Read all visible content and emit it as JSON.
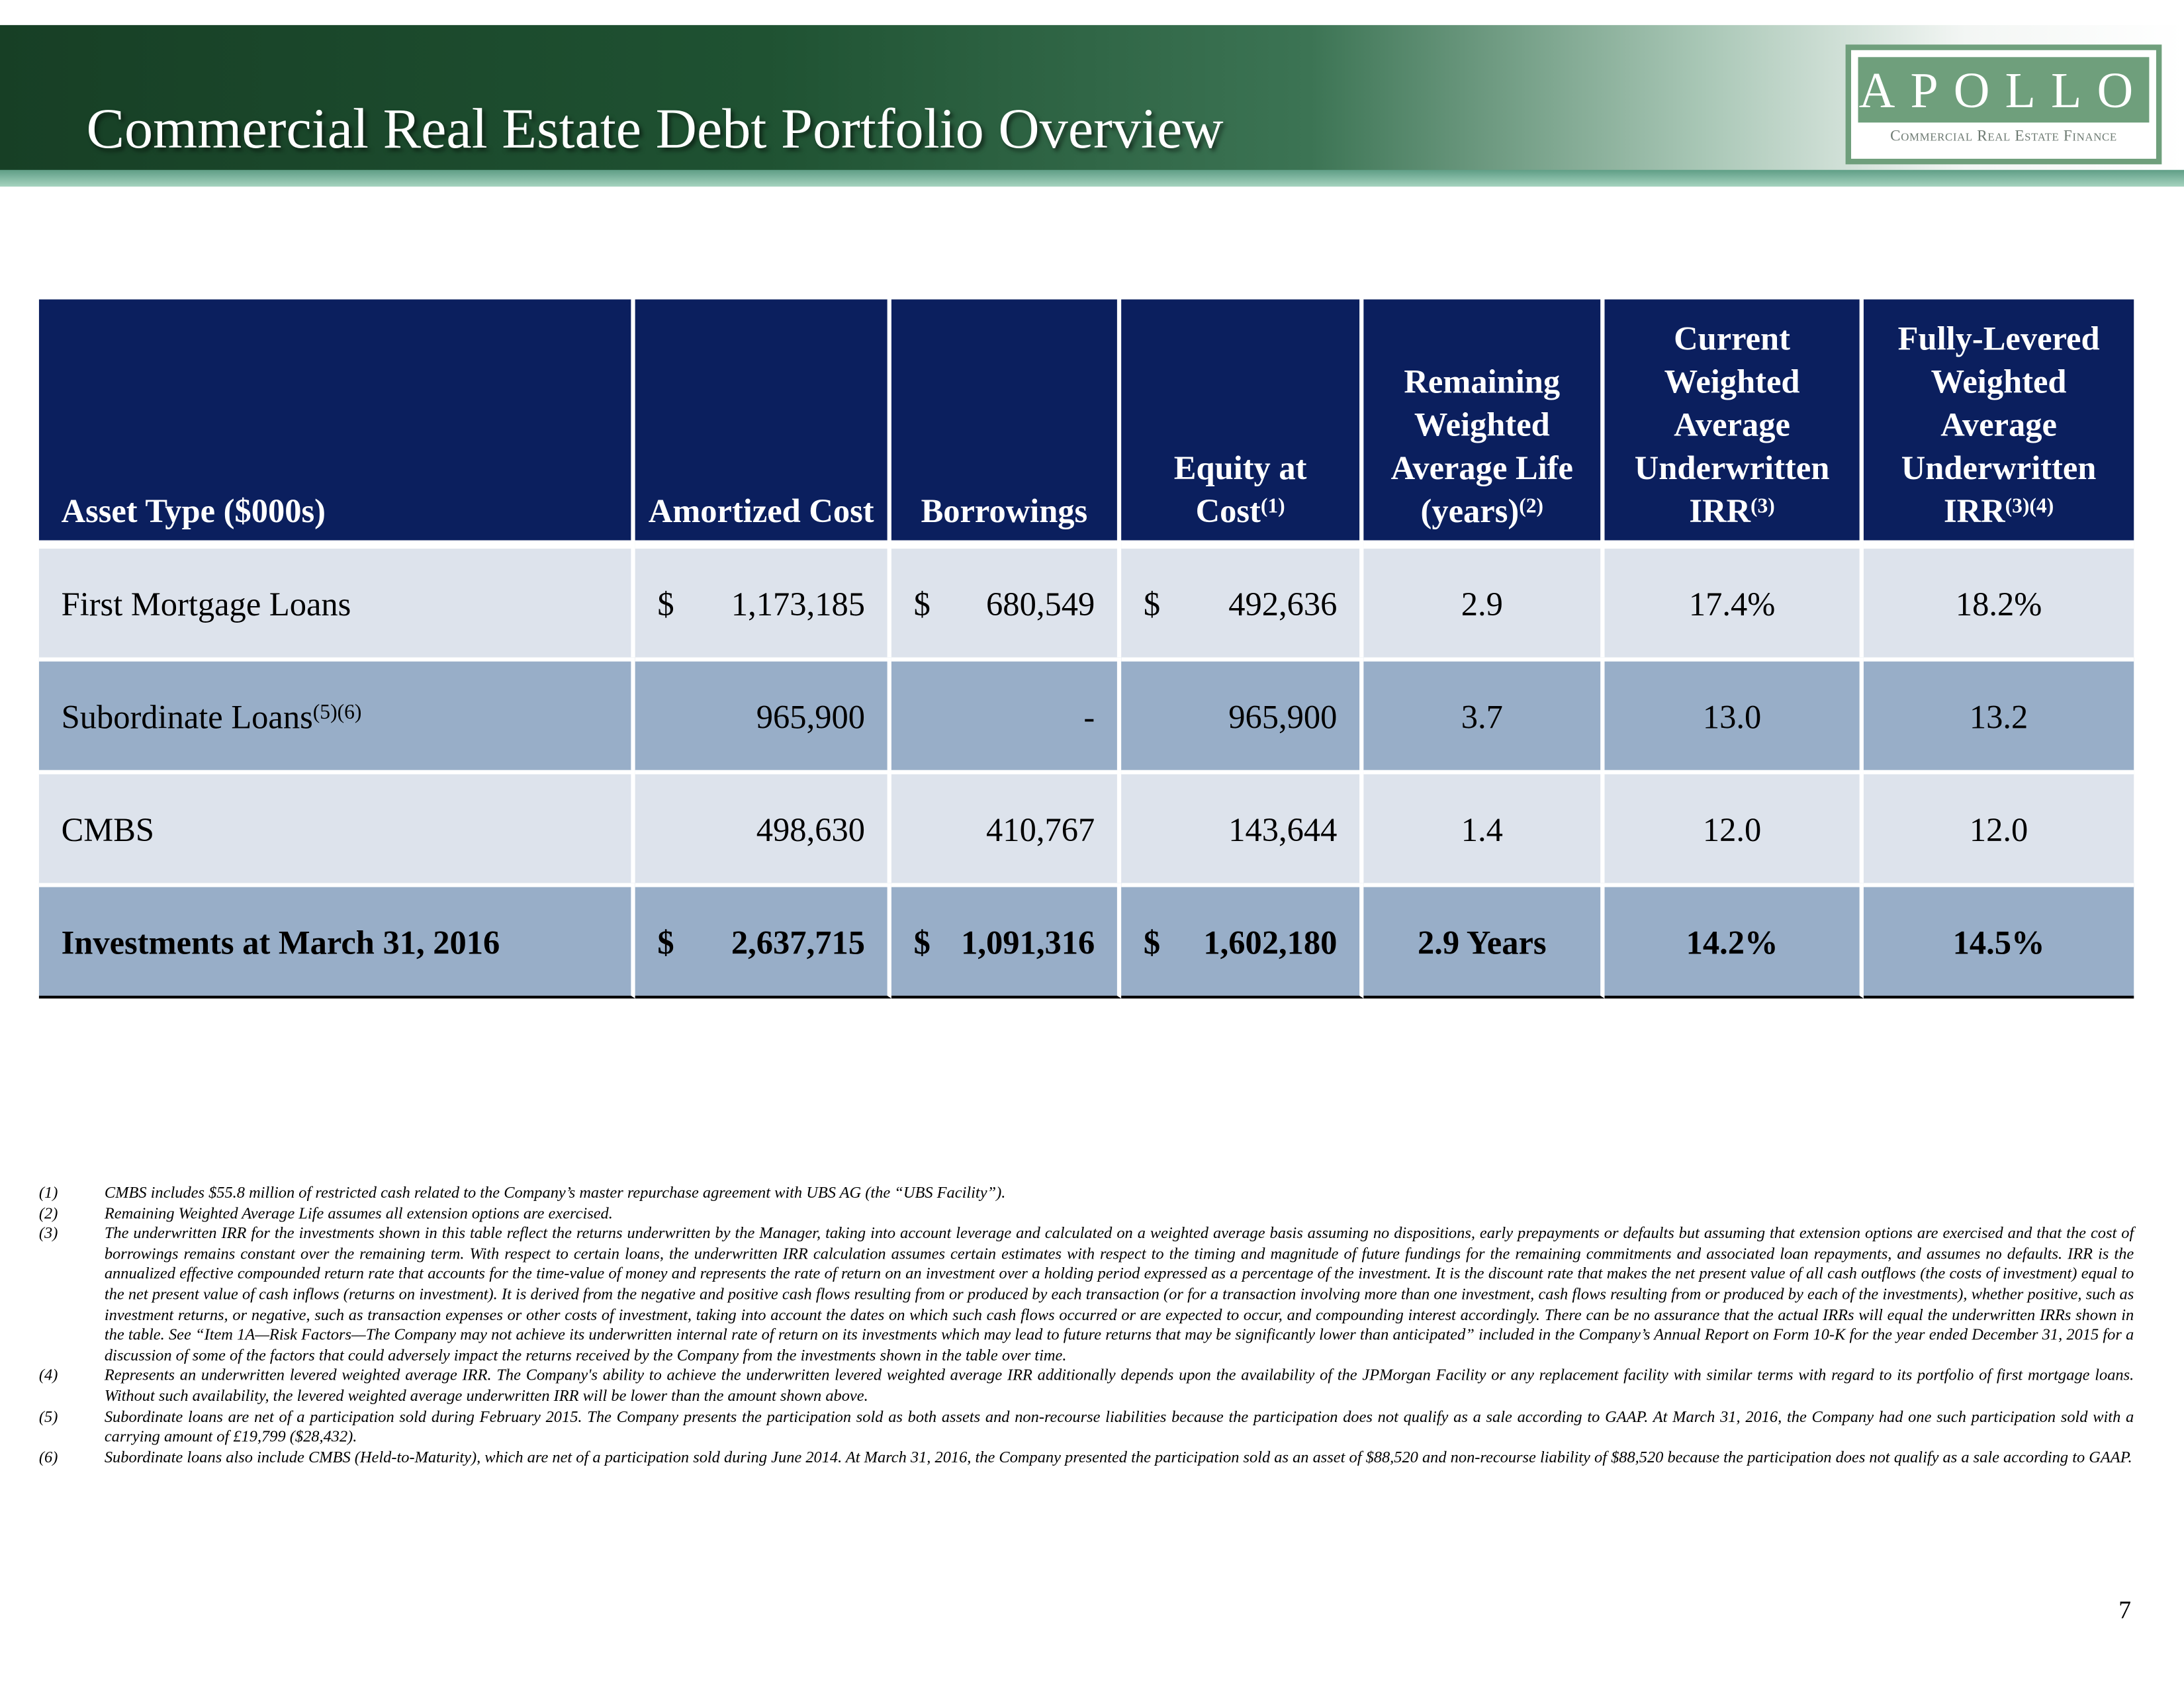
{
  "title": "Commercial Real Estate Debt Portfolio Overview",
  "logo": {
    "name": "APOLLO",
    "subtitle": "Commercial Real Estate Finance"
  },
  "table": {
    "headers": [
      {
        "text": "Asset Type ($000s)",
        "sup": ""
      },
      {
        "text": "Amortized Cost",
        "sup": ""
      },
      {
        "text": "Borrowings",
        "sup": ""
      },
      {
        "text": "Equity at Cost",
        "sup": "(1)"
      },
      {
        "text": "Remaining Weighted Average Life (years)",
        "sup": "(2)"
      },
      {
        "text": "Current Weighted Average Underwritten IRR",
        "sup": "(3)"
      },
      {
        "text": "Fully-Levered Weighted Average Underwritten IRR",
        "sup": "(3)(4)"
      }
    ],
    "rows": [
      {
        "asset": "First Mortgage Loans",
        "sup": "",
        "amortized_cost": "1,173,185",
        "borrowings": "680,549",
        "equity": "492,636",
        "life": "2.9",
        "current_irr": "17.4%",
        "levered_irr": "18.2%",
        "dollar": "$"
      },
      {
        "asset": "Subordinate Loans",
        "sup": "(5)(6)",
        "amortized_cost": "965,900",
        "borrowings": "-",
        "equity": "965,900",
        "life": "3.7",
        "current_irr": "13.0",
        "levered_irr": "13.2"
      },
      {
        "asset": "CMBS",
        "sup": "",
        "amortized_cost": "498,630",
        "borrowings": "410,767",
        "equity": "143,644",
        "life": "1.4",
        "current_irr": "12.0",
        "levered_irr": "12.0"
      },
      {
        "asset": "Investments at March 31, 2016",
        "sup": "",
        "amortized_cost": "2,637,715",
        "borrowings": "1,091,316",
        "equity": "1,602,180",
        "life": "2.9 Years",
        "current_irr": "14.2%",
        "levered_irr": "14.5%",
        "dollar": "$"
      }
    ]
  },
  "footnotes": [
    {
      "n": "(1)",
      "t": "CMBS includes $55.8 million of restricted cash related to the Company’s master repurchase agreement with UBS AG (the “UBS Facility”)."
    },
    {
      "n": "(2)",
      "t": "Remaining Weighted Average Life assumes all extension options are exercised."
    },
    {
      "n": "(3)",
      "t": "The underwritten IRR for the investments shown in this table reflect the returns underwritten by the Manager, taking into account leverage and calculated on a weighted average basis assuming no dispositions, early prepayments or defaults but assuming that extension options are exercised and that the cost of borrowings remains constant over the remaining term.  With respect to certain loans, the underwritten IRR calculation assumes certain estimates with respect to the timing and magnitude of future fundings for the remaining commitments and associated loan repayments, and assumes no defaults. IRR is the annualized effective compounded return rate that accounts for the time-value of money and represents the rate of return on an investment over a holding period expressed as a percentage of the investment. It is the discount rate that makes the net present value of all cash outflows (the costs of investment) equal to the net present value of cash inflows (returns on investment). It is derived from the negative and positive cash flows resulting from or produced by each transaction (or for a transaction involving more than one investment, cash flows resulting from or produced by each of the investments), whether positive, such as investment returns, or negative, such as transaction expenses or other costs of investment, taking into account the dates on which such cash flows occurred or are expected to occur, and compounding interest accordingly. There can be no assurance that the actual IRRs will equal the underwritten IRRs shown in the table. See “Item 1A—Risk Factors—The Company may not achieve its underwritten internal rate of return on its investments which may lead to future returns that may be significantly lower than anticipated” included in the Company’s Annual Report on Form 10-K for the year ended December 31, 2015 for a discussion of some of the factors that could adversely impact the returns received by the Company from the investments shown in the table over time."
    },
    {
      "n": "(4)",
      "t": "Represents an underwritten levered weighted average IRR.  The Company's ability to achieve the underwritten levered weighted average IRR additionally depends upon the availability of the JPMorgan Facility or any replacement facility with similar terms with regard to its portfolio of first mortgage loans.   Without such availability, the levered weighted average underwritten IRR will be lower than the amount shown above."
    },
    {
      "n": "(5)",
      "t": "Subordinate loans are net of a participation sold during February 2015. The Company presents the participation sold as both assets and non-recourse liabilities because the participation does not qualify as a sale according to GAAP. At March 31, 2016, the Company had one such participation sold with a carrying amount of £19,799 ($28,432)."
    },
    {
      "n": "(6)",
      "t": "Subordinate loans also include CMBS (Held-to-Maturity), which are net of a participation sold during June 2014.  At March 31, 2016, the Company presented the participation sold as an asset of $88,520 and non-recourse liability of $88,520 because the participation does not qualify as a sale according to GAAP."
    }
  ],
  "page_number": "7"
}
